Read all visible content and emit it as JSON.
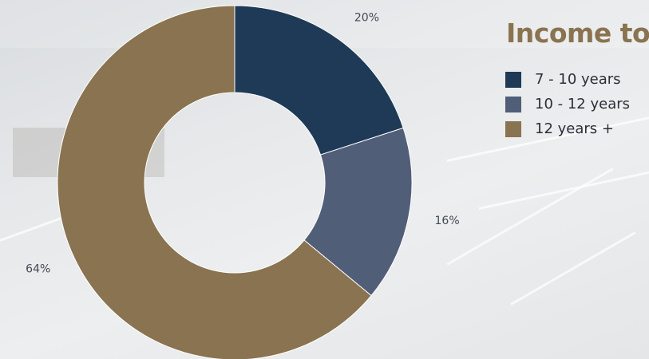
{
  "title": "Income to",
  "chart_data": {
    "type": "pie",
    "variant": "donut",
    "title": "Income to",
    "legend_position": "right",
    "slices": [
      {
        "label": "7 - 10 years",
        "value": 20,
        "display": "20%",
        "color": "#1e3a57"
      },
      {
        "label": "10 - 12 years",
        "value": 16,
        "display": "16%",
        "color": "#515e78"
      },
      {
        "label": "12 years +",
        "value": 64,
        "display": "64%",
        "color": "#8a7350"
      }
    ]
  }
}
